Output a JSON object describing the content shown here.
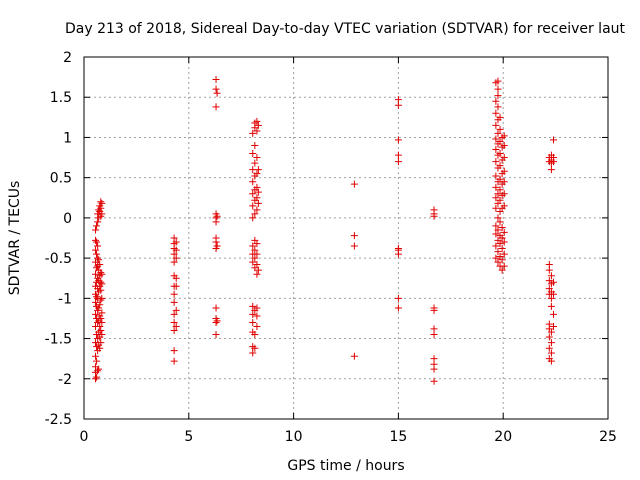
{
  "chart_data": {
    "type": "scatter",
    "title": "Day 213 of 2018, Sidereal Day-to-day VTEC variation (SDTVAR) for receiver laut",
    "xlabel": "GPS time / hours",
    "ylabel": "SDTVAR / TECUs",
    "xlim": [
      0,
      25
    ],
    "ylim": [
      -2.5,
      2
    ],
    "xticks": [
      0,
      5,
      10,
      15,
      20,
      25
    ],
    "xtick_labels": [
      "0",
      "5",
      "10",
      "15",
      "20",
      "25"
    ],
    "yticks": [
      -2.5,
      -2,
      -1.5,
      -1,
      -0.5,
      0,
      0.5,
      1,
      1.5,
      2
    ],
    "ytick_labels": [
      "-2.5",
      "-2",
      "-1.5",
      "-1",
      "-0.5",
      "0",
      "0.5",
      "1",
      "1.5",
      "2"
    ],
    "grid": true,
    "marker": "+",
    "color": "#e00000",
    "series": [
      {
        "name": "SDTVAR",
        "points": [
          [
            0.55,
            -2.0
          ],
          [
            0.55,
            -1.92
          ],
          [
            0.55,
            -1.85
          ],
          [
            0.55,
            -1.72
          ],
          [
            0.55,
            -1.55
          ],
          [
            0.55,
            -1.35
          ],
          [
            0.55,
            -1.2
          ],
          [
            0.55,
            -1.05
          ],
          [
            0.55,
            -0.95
          ],
          [
            0.55,
            -0.85
          ],
          [
            0.55,
            -0.7
          ],
          [
            0.55,
            -0.55
          ],
          [
            0.55,
            -0.4
          ],
          [
            0.55,
            -0.28
          ],
          [
            0.55,
            -0.15
          ],
          [
            0.6,
            -1.98
          ],
          [
            0.6,
            -1.78
          ],
          [
            0.6,
            -1.6
          ],
          [
            0.6,
            -1.45
          ],
          [
            0.6,
            -1.25
          ],
          [
            0.6,
            -1.1
          ],
          [
            0.6,
            -0.98
          ],
          [
            0.6,
            -0.8
          ],
          [
            0.6,
            -0.62
          ],
          [
            0.6,
            -0.45
          ],
          [
            0.6,
            -0.3
          ],
          [
            0.6,
            -0.1
          ],
          [
            0.65,
            -1.9
          ],
          [
            0.65,
            -1.65
          ],
          [
            0.65,
            -1.5
          ],
          [
            0.65,
            -1.3
          ],
          [
            0.65,
            -1.15
          ],
          [
            0.65,
            -1.0
          ],
          [
            0.65,
            -0.88
          ],
          [
            0.65,
            -0.75
          ],
          [
            0.65,
            -0.6
          ],
          [
            0.65,
            -0.5
          ],
          [
            0.65,
            -0.35
          ],
          [
            0.65,
            -0.05
          ],
          [
            0.65,
            0.05
          ],
          [
            0.7,
            -1.88
          ],
          [
            0.7,
            -1.58
          ],
          [
            0.7,
            -1.42
          ],
          [
            0.7,
            -1.28
          ],
          [
            0.7,
            -1.12
          ],
          [
            0.7,
            -0.92
          ],
          [
            0.7,
            -0.78
          ],
          [
            0.7,
            -0.65
          ],
          [
            0.7,
            -0.52
          ],
          [
            0.7,
            0.0
          ],
          [
            0.7,
            0.1
          ],
          [
            0.75,
            -1.62
          ],
          [
            0.75,
            -1.48
          ],
          [
            0.75,
            -1.35
          ],
          [
            0.75,
            -1.22
          ],
          [
            0.75,
            -1.08
          ],
          [
            0.75,
            -0.85
          ],
          [
            0.75,
            -0.72
          ],
          [
            0.75,
            -0.58
          ],
          [
            0.75,
            0.08
          ],
          [
            0.75,
            0.15
          ],
          [
            0.8,
            -1.55
          ],
          [
            0.8,
            -1.4
          ],
          [
            0.8,
            -1.25
          ],
          [
            0.8,
            -1.02
          ],
          [
            0.8,
            -0.9
          ],
          [
            0.8,
            -0.8
          ],
          [
            0.8,
            -0.68
          ],
          [
            0.8,
            0.02
          ],
          [
            0.8,
            0.12
          ],
          [
            0.8,
            0.2
          ],
          [
            0.85,
            -1.45
          ],
          [
            0.85,
            -1.3
          ],
          [
            0.85,
            -1.18
          ],
          [
            0.85,
            -1.0
          ],
          [
            0.85,
            -0.82
          ],
          [
            0.85,
            -0.7
          ],
          [
            0.85,
            0.05
          ],
          [
            0.85,
            0.18
          ],
          [
            4.3,
            -1.78
          ],
          [
            4.3,
            -1.65
          ],
          [
            4.3,
            -1.4
          ],
          [
            4.3,
            -1.3
          ],
          [
            4.3,
            -1.2
          ],
          [
            4.3,
            -1.05
          ],
          [
            4.3,
            -0.95
          ],
          [
            4.3,
            -0.85
          ],
          [
            4.3,
            -0.72
          ],
          [
            4.3,
            -0.55
          ],
          [
            4.3,
            -0.45
          ],
          [
            4.3,
            -0.38
          ],
          [
            4.3,
            -0.32
          ],
          [
            4.3,
            -0.25
          ],
          [
            4.4,
            -1.35
          ],
          [
            4.4,
            -1.15
          ],
          [
            4.4,
            -0.85
          ],
          [
            4.4,
            -0.75
          ],
          [
            4.4,
            -0.5
          ],
          [
            4.4,
            -0.4
          ],
          [
            4.4,
            -0.3
          ],
          [
            6.3,
            -1.45
          ],
          [
            6.3,
            -1.3
          ],
          [
            6.3,
            -1.25
          ],
          [
            6.3,
            -1.12
          ],
          [
            6.3,
            -0.38
          ],
          [
            6.3,
            -0.3
          ],
          [
            6.3,
            -0.25
          ],
          [
            6.3,
            -0.05
          ],
          [
            6.3,
            0.0
          ],
          [
            6.3,
            0.05
          ],
          [
            6.3,
            1.38
          ],
          [
            6.3,
            1.6
          ],
          [
            6.3,
            1.72
          ],
          [
            6.35,
            -1.28
          ],
          [
            6.35,
            -0.35
          ],
          [
            6.35,
            0.02
          ],
          [
            6.35,
            1.55
          ],
          [
            8.05,
            -1.68
          ],
          [
            8.05,
            -1.6
          ],
          [
            8.05,
            -1.42
          ],
          [
            8.05,
            -1.3
          ],
          [
            8.05,
            -1.2
          ],
          [
            8.05,
            -1.1
          ],
          [
            8.05,
            -0.55
          ],
          [
            8.05,
            -0.45
          ],
          [
            8.05,
            -0.35
          ],
          [
            8.05,
            0.0
          ],
          [
            8.05,
            0.15
          ],
          [
            8.05,
            0.3
          ],
          [
            8.05,
            0.45
          ],
          [
            8.05,
            0.6
          ],
          [
            8.05,
            0.8
          ],
          [
            8.05,
            1.05
          ],
          [
            8.15,
            -1.62
          ],
          [
            8.15,
            -1.45
          ],
          [
            8.15,
            -1.15
          ],
          [
            8.15,
            -0.62
          ],
          [
            8.15,
            -0.5
          ],
          [
            8.15,
            -0.4
          ],
          [
            8.15,
            -0.28
          ],
          [
            8.15,
            0.05
          ],
          [
            8.15,
            0.22
          ],
          [
            8.15,
            0.35
          ],
          [
            8.15,
            0.52
          ],
          [
            8.15,
            0.68
          ],
          [
            8.15,
            0.9
          ],
          [
            8.15,
            1.12
          ],
          [
            8.15,
            1.18
          ],
          [
            8.25,
            -1.35
          ],
          [
            8.25,
            -1.22
          ],
          [
            8.25,
            -1.12
          ],
          [
            8.25,
            -0.7
          ],
          [
            8.25,
            -0.58
          ],
          [
            8.25,
            -0.45
          ],
          [
            8.25,
            -0.32
          ],
          [
            8.25,
            0.1
          ],
          [
            8.25,
            0.25
          ],
          [
            8.25,
            0.38
          ],
          [
            8.25,
            0.55
          ],
          [
            8.25,
            0.75
          ],
          [
            8.25,
            1.08
          ],
          [
            8.25,
            1.2
          ],
          [
            8.32,
            -0.65
          ],
          [
            8.32,
            0.18
          ],
          [
            8.32,
            0.32
          ],
          [
            8.32,
            0.6
          ],
          [
            8.32,
            1.15
          ],
          [
            12.9,
            -1.72
          ],
          [
            12.9,
            -0.35
          ],
          [
            12.9,
            -0.22
          ],
          [
            12.9,
            0.42
          ],
          [
            15.0,
            -1.12
          ],
          [
            15.0,
            -1.0
          ],
          [
            15.0,
            -0.45
          ],
          [
            15.0,
            -0.4
          ],
          [
            15.0,
            -0.38
          ],
          [
            15.0,
            0.7
          ],
          [
            15.0,
            0.78
          ],
          [
            15.0,
            0.97
          ],
          [
            15.0,
            1.4
          ],
          [
            15.0,
            1.47
          ],
          [
            16.7,
            -2.03
          ],
          [
            16.7,
            -1.88
          ],
          [
            16.7,
            -1.82
          ],
          [
            16.7,
            -1.75
          ],
          [
            16.7,
            -1.45
          ],
          [
            16.7,
            -1.38
          ],
          [
            16.7,
            -1.15
          ],
          [
            16.7,
            -1.12
          ],
          [
            16.7,
            0.02
          ],
          [
            16.7,
            0.05
          ],
          [
            16.7,
            0.1
          ],
          [
            19.65,
            -0.5
          ],
          [
            19.65,
            -0.35
          ],
          [
            19.65,
            -0.2
          ],
          [
            19.65,
            -0.1
          ],
          [
            19.65,
            0.12
          ],
          [
            19.65,
            0.25
          ],
          [
            19.65,
            0.38
          ],
          [
            19.65,
            0.52
          ],
          [
            19.65,
            0.7
          ],
          [
            19.65,
            0.85
          ],
          [
            19.65,
            0.98
          ],
          [
            19.65,
            1.15
          ],
          [
            19.65,
            1.3
          ],
          [
            19.65,
            1.45
          ],
          [
            19.65,
            1.68
          ],
          [
            19.75,
            -0.55
          ],
          [
            19.75,
            -0.42
          ],
          [
            19.75,
            -0.28
          ],
          [
            19.75,
            -0.15
          ],
          [
            19.75,
            0.0
          ],
          [
            19.75,
            0.18
          ],
          [
            19.75,
            0.3
          ],
          [
            19.75,
            0.45
          ],
          [
            19.75,
            0.62
          ],
          [
            19.75,
            0.78
          ],
          [
            19.75,
            0.92
          ],
          [
            19.75,
            1.05
          ],
          [
            19.75,
            1.22
          ],
          [
            19.75,
            1.38
          ],
          [
            19.75,
            1.52
          ],
          [
            19.75,
            1.6
          ],
          [
            19.75,
            1.7
          ],
          [
            19.85,
            -0.6
          ],
          [
            19.85,
            -0.48
          ],
          [
            19.85,
            -0.32
          ],
          [
            19.85,
            -0.22
          ],
          [
            19.85,
            -0.05
          ],
          [
            19.85,
            0.08
          ],
          [
            19.85,
            0.22
          ],
          [
            19.85,
            0.35
          ],
          [
            19.85,
            0.48
          ],
          [
            19.85,
            0.65
          ],
          [
            19.85,
            0.8
          ],
          [
            19.85,
            0.95
          ],
          [
            19.85,
            1.1
          ],
          [
            19.85,
            1.25
          ],
          [
            19.95,
            -0.65
          ],
          [
            19.95,
            -0.52
          ],
          [
            19.95,
            -0.38
          ],
          [
            19.95,
            -0.25
          ],
          [
            19.95,
            -0.12
          ],
          [
            19.95,
            0.12
          ],
          [
            19.95,
            0.28
          ],
          [
            19.95,
            0.42
          ],
          [
            19.95,
            0.55
          ],
          [
            19.95,
            0.72
          ],
          [
            19.95,
            0.88
          ],
          [
            19.95,
            1.0
          ],
          [
            20.05,
            -0.6
          ],
          [
            20.05,
            -0.45
          ],
          [
            20.05,
            -0.3
          ],
          [
            20.05,
            -0.18
          ],
          [
            20.05,
            0.15
          ],
          [
            20.05,
            0.3
          ],
          [
            20.05,
            0.45
          ],
          [
            20.05,
            0.58
          ],
          [
            20.05,
            0.75
          ],
          [
            20.05,
            0.9
          ],
          [
            20.05,
            1.02
          ],
          [
            22.2,
            -1.75
          ],
          [
            22.2,
            -1.62
          ],
          [
            22.2,
            -1.48
          ],
          [
            22.2,
            -1.38
          ],
          [
            22.2,
            -1.32
          ],
          [
            22.2,
            -0.95
          ],
          [
            22.2,
            -0.88
          ],
          [
            22.2,
            -0.78
          ],
          [
            22.2,
            -0.65
          ],
          [
            22.2,
            -0.58
          ],
          [
            22.2,
            0.7
          ],
          [
            22.2,
            0.75
          ],
          [
            22.3,
            -1.78
          ],
          [
            22.3,
            -1.68
          ],
          [
            22.3,
            -1.55
          ],
          [
            22.3,
            -1.42
          ],
          [
            22.3,
            -1.1
          ],
          [
            22.3,
            -1.0
          ],
          [
            22.3,
            -0.92
          ],
          [
            22.3,
            -0.82
          ],
          [
            22.3,
            -0.72
          ],
          [
            22.3,
            0.6
          ],
          [
            22.3,
            0.68
          ],
          [
            22.3,
            0.72
          ],
          [
            22.3,
            0.78
          ],
          [
            22.4,
            -1.35
          ],
          [
            22.4,
            -1.2
          ],
          [
            22.4,
            -0.95
          ],
          [
            22.4,
            -0.8
          ],
          [
            22.4,
            0.7
          ],
          [
            22.4,
            0.75
          ],
          [
            22.4,
            0.97
          ]
        ]
      }
    ]
  }
}
